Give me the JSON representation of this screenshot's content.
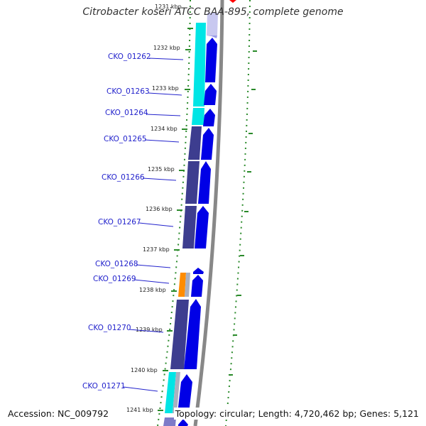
{
  "title": "Citrobacter koseri ATCC BAA-895, complete genome",
  "footer": {
    "accession": "Accession: NC_009792",
    "topology": "Topology: circular; Length: 4,720,462 bp; Genes: 5,121"
  },
  "colors": {
    "background": "#ffffff",
    "gene_label": "#2222cc",
    "cds_arrow": "#0000e6",
    "cog_cyan": "#00e5e5",
    "cog_navy": "#3d3d8f",
    "cog_orange": "#ff8c00",
    "cog_gray": "#aab0c0",
    "gc_skew_tick": "#2a8a2a",
    "backbone": "#888888",
    "kbp_label": "#222222"
  },
  "kbp_labels": [
    "1231 kbp",
    "1232 kbp",
    "1233 kbp",
    "1234 kbp",
    "1235 kbp",
    "1236 kbp",
    "1237 kbp",
    "1238 kbp",
    "1239 kbp",
    "1240 kbp",
    "1241 kbp"
  ],
  "genes": [
    {
      "name": "CKO_01262"
    },
    {
      "name": "CKO_01263"
    },
    {
      "name": "CKO_01264"
    },
    {
      "name": "CKO_01265"
    },
    {
      "name": "CKO_01266"
    },
    {
      "name": "CKO_01267"
    },
    {
      "name": "CKO_01268"
    },
    {
      "name": "CKO_01269"
    },
    {
      "name": "CKO_01270"
    },
    {
      "name": "CKO_01271"
    }
  ]
}
